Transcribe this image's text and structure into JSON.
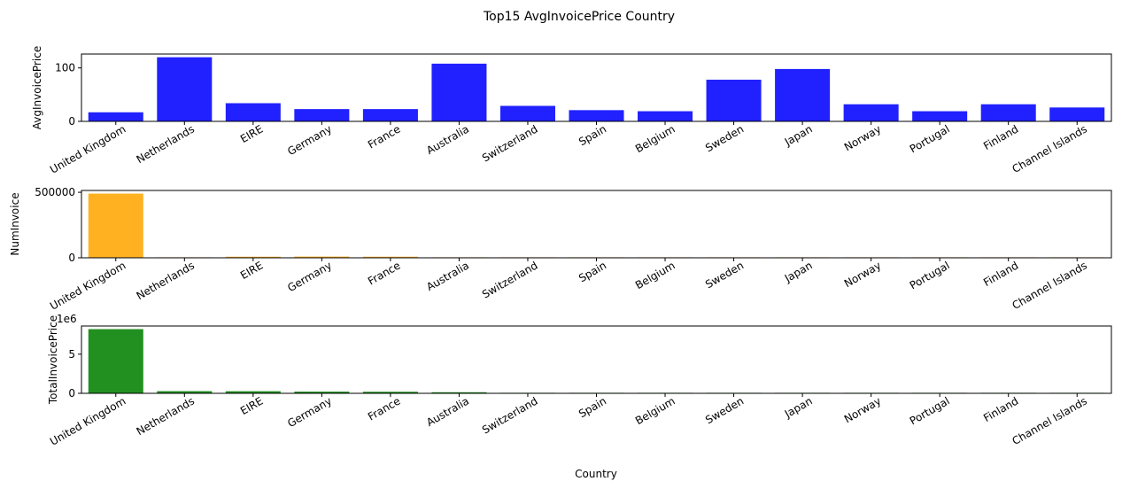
{
  "figure": {
    "title": "Top15 AvgInvoicePrice Country",
    "xlabel": "Country"
  },
  "chart_data": [
    {
      "type": "bar",
      "categories": [
        "United Kingdom",
        "Netherlands",
        "EIRE",
        "Germany",
        "France",
        "Australia",
        "Switzerland",
        "Spain",
        "Belgium",
        "Sweden",
        "Japan",
        "Norway",
        "Portugal",
        "Finland",
        "Channel Islands"
      ],
      "values": [
        17,
        120,
        34,
        23,
        23,
        108,
        29,
        21,
        19,
        78,
        98,
        32,
        19,
        32,
        26
      ],
      "ylabel": "AvgInvoicePrice",
      "xlabel": "",
      "ylim": [
        0,
        126
      ],
      "yticks": [
        0,
        100
      ],
      "color": "#0000ff",
      "scale_label": ""
    },
    {
      "type": "bar",
      "categories": [
        "United Kingdom",
        "Netherlands",
        "EIRE",
        "Germany",
        "France",
        "Australia",
        "Switzerland",
        "Spain",
        "Belgium",
        "Sweden",
        "Japan",
        "Norway",
        "Portugal",
        "Finland",
        "Channel Islands"
      ],
      "values": [
        490000,
        2400,
        8200,
        9500,
        8400,
        1250,
        2000,
        2500,
        2100,
        470,
        360,
        1100,
        1500,
        700,
        760
      ],
      "ylabel": "NumInvoice",
      "xlabel": "",
      "ylim": [
        0,
        514000
      ],
      "yticks": [
        0,
        500000
      ],
      "color": "#ffa500",
      "scale_label": ""
    },
    {
      "type": "bar",
      "categories": [
        "United Kingdom",
        "Netherlands",
        "EIRE",
        "Germany",
        "France",
        "Australia",
        "Switzerland",
        "Spain",
        "Belgium",
        "Sweden",
        "Japan",
        "Norway",
        "Portugal",
        "Finland",
        "Channel Islands"
      ],
      "values": [
        8.2,
        0.28,
        0.27,
        0.22,
        0.2,
        0.14,
        0.057,
        0.055,
        0.041,
        0.037,
        0.035,
        0.036,
        0.029,
        0.022,
        0.02
      ],
      "ylabel": "TotalInvoicePrice",
      "xlabel": "Country",
      "ylim": [
        0,
        8.6
      ],
      "yticks": [
        0,
        5
      ],
      "color": "#008000",
      "scale_label": "1e6"
    }
  ]
}
